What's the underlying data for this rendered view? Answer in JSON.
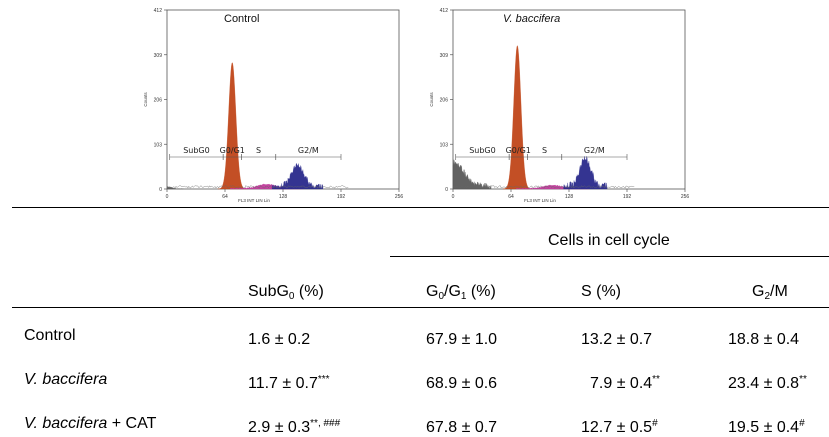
{
  "chart_data": [
    {
      "type": "area",
      "title": "Control",
      "ylabel": "Counts",
      "xlabel": "FL3 INT LIN Lin",
      "xlim": [
        0,
        256
      ],
      "ylim": [
        0,
        412
      ],
      "x_ticks": [
        "0",
        "64",
        "128",
        "192",
        "256"
      ],
      "y_ticks": [
        "0",
        "103",
        "206",
        "309",
        "412"
      ],
      "regions": [
        {
          "name": "SubG0",
          "color": "#5a5a5a"
        },
        {
          "name": "G0/G1",
          "color": "#c0461a"
        },
        {
          "name": "S",
          "color": "#c03a9a"
        },
        {
          "name": "G2/M",
          "color": "#2a2a8c"
        }
      ],
      "peaks": [
        {
          "x": 2,
          "y": 4,
          "width": 4,
          "color": "#5a5a5a"
        },
        {
          "x": 72,
          "y": 291,
          "width": 4.0,
          "color": "#c0461a"
        },
        {
          "x": 110,
          "y": 10,
          "width": 10,
          "color": "#c03a9a"
        },
        {
          "x": 144,
          "y": 48,
          "width": 7,
          "color": "#2a2a8c"
        }
      ]
    },
    {
      "type": "area",
      "title": "V. baccifera",
      "ylabel": "Counts",
      "xlabel": "FL3 INT LIN Lin",
      "xlim": [
        0,
        256
      ],
      "ylim": [
        0,
        412
      ],
      "x_ticks": [
        "0",
        "64",
        "128",
        "192",
        "256"
      ],
      "y_ticks": [
        "0",
        "103",
        "206",
        "309",
        "412"
      ],
      "regions": [
        {
          "name": "SubG0",
          "color": "#5a5a5a"
        },
        {
          "name": "G0/G1",
          "color": "#c0461a"
        },
        {
          "name": "S",
          "color": "#c03a9a"
        },
        {
          "name": "G2/M",
          "color": "#2a2a8c"
        }
      ],
      "peaks": [
        {
          "x": 2,
          "y": 55,
          "width": 10,
          "color": "#5a5a5a"
        },
        {
          "x": 71,
          "y": 330,
          "width": 4.0,
          "color": "#c0461a"
        },
        {
          "x": 110,
          "y": 8,
          "width": 10,
          "color": "#c03a9a"
        },
        {
          "x": 146,
          "y": 62,
          "width": 6,
          "color": "#2a2a8c"
        }
      ]
    }
  ],
  "table": {
    "group_header": "Cells in cell cycle",
    "columns": {
      "subg0": {
        "base": "SubG",
        "sub": "0",
        "tail": " (%)"
      },
      "g0g1": {
        "p1": "G",
        "s1": "0",
        "p2": "/G",
        "s2": "1",
        "tail": " (%)"
      },
      "s": {
        "label": "S (%)"
      },
      "g2m": {
        "base": "G",
        "sub": "2",
        "tail": "/M"
      }
    },
    "rows": [
      {
        "label_it": "",
        "label_rest": "Control",
        "subg0": {
          "v": "1.6 ± 0.2",
          "sup": ""
        },
        "g0g1": {
          "v": "67.9 ± 1.0",
          "sup": ""
        },
        "s": {
          "v": "13.2 ± 0.7",
          "sup": ""
        },
        "g2m": {
          "v": "18.8 ± 0.4",
          "sup": ""
        }
      },
      {
        "label_it": "V. baccifera",
        "label_rest": "",
        "subg0": {
          "v": "11.7 ± 0.7",
          "sup": "***"
        },
        "g0g1": {
          "v": "68.9 ± 0.6",
          "sup": ""
        },
        "s": {
          "v": "7.9 ± 0.4",
          "sup": "**"
        },
        "g2m": {
          "v": "23.4 ± 0.8",
          "sup": "**"
        }
      },
      {
        "label_it": "V. baccifera",
        "label_rest": " + CAT",
        "subg0": {
          "v": "2.9 ± 0.3",
          "sup": "**, ###"
        },
        "g0g1": {
          "v": "67.8 ± 0.7",
          "sup": ""
        },
        "s": {
          "v": "12.7 ± 0.5",
          "sup": "#"
        },
        "g2m": {
          "v": "19.5 ± 0.4",
          "sup": "#"
        }
      }
    ]
  }
}
